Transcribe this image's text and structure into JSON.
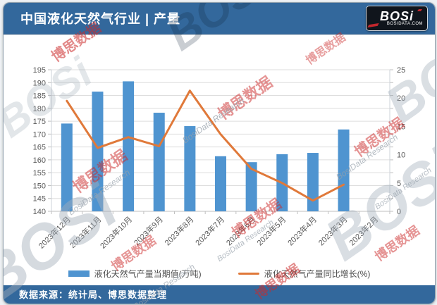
{
  "header": {
    "title": "中国液化天然气行业 | 产量",
    "logo": {
      "text": "BOSi",
      "subtext": "BOSIDATA.COM"
    }
  },
  "footer": {
    "source": "数据来源：统计局、博思数据整理"
  },
  "legend": [
    {
      "label": "液化天然气产量当期值(万吨)",
      "type": "bar",
      "color": "#4f94d0"
    },
    {
      "label": "液化天然气产量同比增长(%)",
      "type": "line",
      "color": "#e0793a"
    }
  ],
  "watermarks": {
    "logo_text": "BOSi",
    "cn_text": "博思数据",
    "en_text": "BosiData Research"
  },
  "colors": {
    "header_bg": "#33689c",
    "bar": "#4f94d0",
    "line": "#e0793a",
    "axis_text": "#595959",
    "grid": "#dddddd",
    "axis_line": "#bfbfbf"
  },
  "chart_data": {
    "type": "bar",
    "subtype": "combo-bar-line",
    "title": "中国液化天然气行业 | 产量",
    "categories": [
      "2023年12月",
      "2023年11月",
      "2023年10月",
      "2023年9月",
      "2023年8月",
      "2023年7月",
      "2023年6月",
      "2023年5月",
      "2023年4月",
      "2023年3月",
      "2023年2月"
    ],
    "series": [
      {
        "name": "液化天然气产量当期值(万吨)",
        "type": "bar",
        "axis": "left",
        "color": "#4f94d0",
        "values": [
          174.1,
          186.5,
          190.5,
          178.3,
          173.1,
          161.4,
          159.1,
          162.2,
          162.7,
          171.8,
          null
        ]
      },
      {
        "name": "液化天然气产量同比增长(%)",
        "type": "line",
        "axis": "right",
        "color": "#e0793a",
        "values": [
          19.5,
          11.2,
          13.1,
          11.5,
          21.3,
          13.6,
          7.5,
          5.0,
          1.9,
          4.7,
          null
        ]
      }
    ],
    "left_axis": {
      "min": 140,
      "max": 195,
      "step": 5
    },
    "right_axis": {
      "min": 0,
      "max": 25,
      "step": 5
    },
    "grid": true,
    "legend_position": "bottom"
  }
}
